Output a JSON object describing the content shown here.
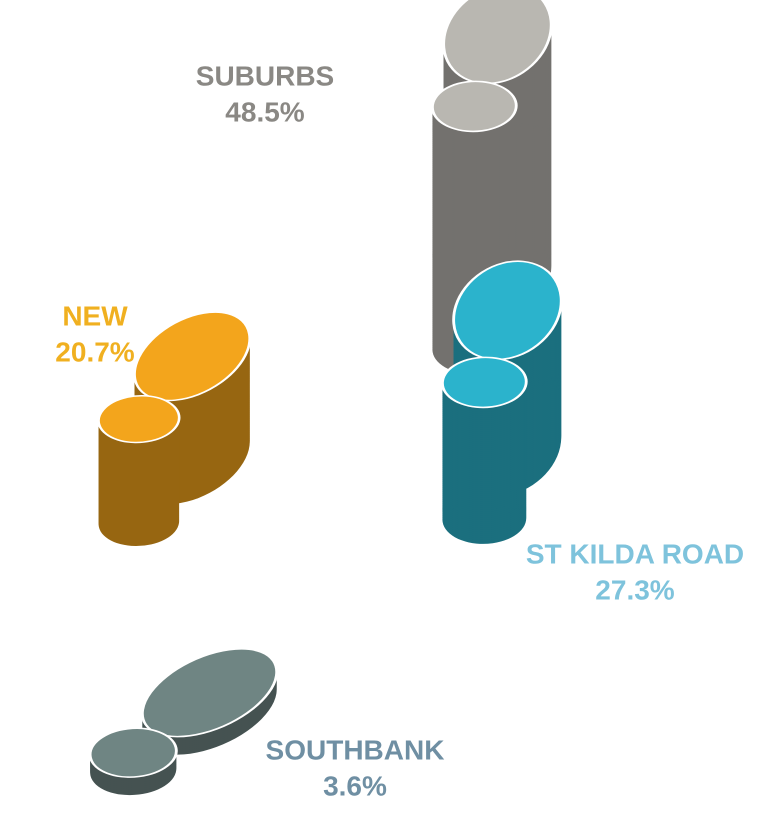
{
  "chart_data": {
    "type": "pictorial",
    "categories": [
      "SUBURBS",
      "NEW",
      "ST KILDA ROAD",
      "SOUTHBANK"
    ],
    "values": [
      48.5,
      20.7,
      27.3,
      3.6
    ],
    "value_labels": [
      "48.5%",
      "20.7%",
      "27.3%",
      "3.6%"
    ],
    "colors": [
      "#b9b7b1",
      "#f3a51c",
      "#2bb3cc",
      "#6f8583"
    ],
    "label_colors": [
      "#8a8884",
      "#f0b020",
      "#7ec3dc",
      "#6f8fa3"
    ]
  }
}
